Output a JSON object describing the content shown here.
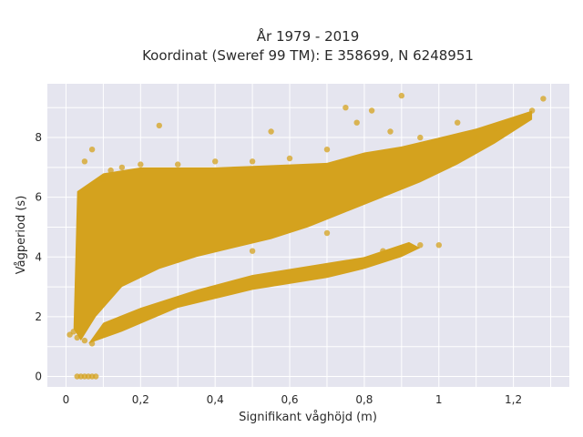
{
  "chart_data": {
    "type": "scatter",
    "title_lines": [
      "År 1979 - 2019",
      "Koordinat (Sweref 99 TM): E 358699, N 6248951"
    ],
    "xlabel": "Signifikant våghöjd (m)",
    "ylabel": "Vågperiod (s)",
    "xlim": [
      -0.05,
      1.35
    ],
    "ylim": [
      -0.35,
      9.8
    ],
    "x_ticks": [
      0,
      0.2,
      0.4,
      0.6,
      0.8,
      1,
      1.2
    ],
    "x_tick_labels": [
      "0",
      "0,2",
      "0,4",
      "0,6",
      "0,8",
      "1",
      "1,2"
    ],
    "y_ticks": [
      0,
      2,
      4,
      6,
      8
    ],
    "y_tick_labels": [
      "0",
      "2",
      "4",
      "6",
      "8"
    ],
    "grid": true,
    "point_color": "#D4A21E",
    "plot_background": "#E5E5EF",
    "points": [
      [
        0.03,
        0
      ],
      [
        0.04,
        0
      ],
      [
        0.05,
        0
      ],
      [
        0.06,
        0
      ],
      [
        0.07,
        0
      ],
      [
        0.08,
        0
      ],
      [
        0.01,
        1.4
      ],
      [
        0.02,
        1.5
      ],
      [
        0.03,
        1.3
      ],
      [
        0.05,
        1.2
      ],
      [
        0.07,
        1.1
      ],
      [
        0.05,
        7.2
      ],
      [
        0.07,
        7.6
      ],
      [
        0.1,
        6.6
      ],
      [
        0.12,
        6.9
      ],
      [
        0.15,
        7.0
      ],
      [
        0.2,
        7.1
      ],
      [
        0.25,
        8.4
      ],
      [
        0.3,
        7.1
      ],
      [
        0.4,
        7.2
      ],
      [
        0.5,
        7.2
      ],
      [
        0.55,
        8.2
      ],
      [
        0.6,
        7.3
      ],
      [
        0.7,
        7.6
      ],
      [
        0.75,
        9.0
      ],
      [
        0.78,
        8.5
      ],
      [
        0.82,
        8.9
      ],
      [
        0.87,
        8.2
      ],
      [
        0.9,
        9.4
      ],
      [
        0.95,
        8.0
      ],
      [
        1.0,
        4.4
      ],
      [
        1.05,
        8.5
      ],
      [
        1.1,
        8.0
      ],
      [
        1.15,
        8.3
      ],
      [
        1.2,
        8.5
      ],
      [
        1.25,
        8.9
      ],
      [
        1.28,
        9.3
      ],
      [
        0.3,
        3.9
      ],
      [
        0.5,
        4.2
      ],
      [
        0.7,
        4.8
      ],
      [
        0.85,
        4.2
      ],
      [
        0.9,
        4.3
      ],
      [
        0.95,
        4.4
      ]
    ]
  }
}
